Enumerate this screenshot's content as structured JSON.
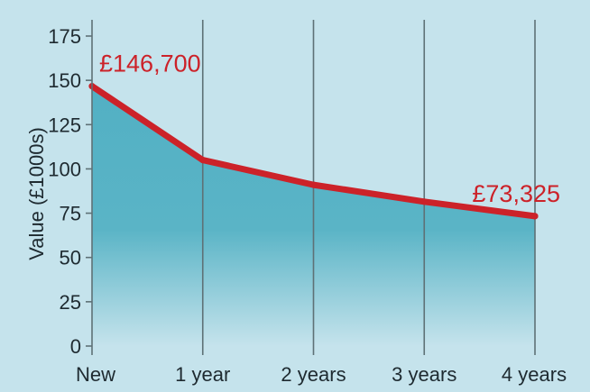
{
  "chart_data": {
    "type": "area",
    "categories": [
      "New",
      "1 year",
      "2 years",
      "3 years",
      "4 years"
    ],
    "series": [
      {
        "values": [
          146.7,
          105,
          91,
          81.5,
          73.325
        ]
      }
    ],
    "ylabel": "Value (£1000s)",
    "xlabel": "",
    "ylim": [
      0,
      175
    ],
    "yticks": [
      0,
      25,
      50,
      75,
      100,
      125,
      150,
      175
    ],
    "grid": "vertical",
    "annotations": [
      {
        "index": 0,
        "text": "£146,700"
      },
      {
        "index": 4,
        "text": "£73,325"
      }
    ],
    "colors": {
      "background": "#c5e3ec",
      "line": "#cc2229",
      "fill_top": "#52b0c4",
      "fill_bottom": "#c5e3ec",
      "grid": "#5e7176",
      "text": "#1e2a30"
    }
  }
}
